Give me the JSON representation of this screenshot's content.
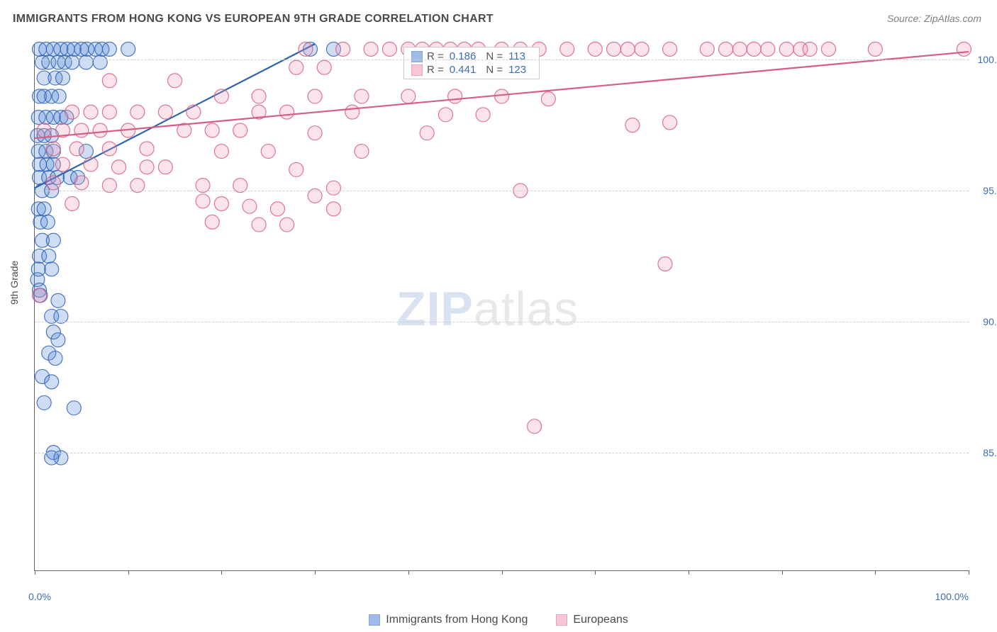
{
  "title": "IMMIGRANTS FROM HONG KONG VS EUROPEAN 9TH GRADE CORRELATION CHART",
  "source_label": "Source: ZipAtlas.com",
  "ylabel": "9th Grade",
  "watermark": {
    "zip": "ZIP",
    "atlas": "atlas"
  },
  "chart": {
    "type": "scatter",
    "background_color": "#ffffff",
    "grid_color": "#d0d0d0",
    "axis_color": "#666666",
    "xlim": [
      0,
      100
    ],
    "ylim": [
      80.5,
      100.6
    ],
    "xtick_positions": [
      0,
      10,
      20,
      30,
      40,
      50,
      60,
      70,
      80,
      90,
      100
    ],
    "xtick_labels_shown": {
      "0": "0.0%",
      "100": "100.0%"
    },
    "ytick_positions": [
      85,
      90,
      95,
      100
    ],
    "ytick_labels": [
      "85.0%",
      "90.0%",
      "95.0%",
      "100.0%"
    ],
    "marker_radius": 10,
    "marker_fill_opacity": 0.28,
    "marker_stroke_opacity": 0.85,
    "marker_stroke_width": 1.2,
    "trendline_width": 2.2,
    "series": [
      {
        "key": "hk",
        "label": "Immigrants from Hong Kong",
        "color": "#4e86d6",
        "stroke": "#2f62b0",
        "R": "0.186",
        "N": "113",
        "trend": {
          "x1": 0,
          "y1": 95.1,
          "x2": 30,
          "y2": 100.6
        },
        "points": [
          [
            0.5,
            100.4
          ],
          [
            1.2,
            100.4
          ],
          [
            2.0,
            100.4
          ],
          [
            2.8,
            100.4
          ],
          [
            3.5,
            100.4
          ],
          [
            4.2,
            100.4
          ],
          [
            5.0,
            100.4
          ],
          [
            5.6,
            100.4
          ],
          [
            6.5,
            100.4
          ],
          [
            7.2,
            100.4
          ],
          [
            8.0,
            100.4
          ],
          [
            10.0,
            100.4
          ],
          [
            29.5,
            100.4
          ],
          [
            32.0,
            100.4
          ],
          [
            0.8,
            99.9
          ],
          [
            1.5,
            99.9
          ],
          [
            2.5,
            99.9
          ],
          [
            3.2,
            99.9
          ],
          [
            4.0,
            99.9
          ],
          [
            5.5,
            99.9
          ],
          [
            7.0,
            99.9
          ],
          [
            1.0,
            99.3
          ],
          [
            2.2,
            99.3
          ],
          [
            3.0,
            99.3
          ],
          [
            0.5,
            98.6
          ],
          [
            1.0,
            98.6
          ],
          [
            1.8,
            98.6
          ],
          [
            2.6,
            98.6
          ],
          [
            0.4,
            97.8
          ],
          [
            1.2,
            97.8
          ],
          [
            2.0,
            97.8
          ],
          [
            2.8,
            97.8
          ],
          [
            3.4,
            97.8
          ],
          [
            0.3,
            97.1
          ],
          [
            1.0,
            97.1
          ],
          [
            1.8,
            97.1
          ],
          [
            0.4,
            96.5
          ],
          [
            1.2,
            96.5
          ],
          [
            2.0,
            96.5
          ],
          [
            5.5,
            96.5
          ],
          [
            0.5,
            96.0
          ],
          [
            1.3,
            96.0
          ],
          [
            2.0,
            96.0
          ],
          [
            0.5,
            95.5
          ],
          [
            1.5,
            95.5
          ],
          [
            2.4,
            95.5
          ],
          [
            3.8,
            95.5
          ],
          [
            4.6,
            95.5
          ],
          [
            0.8,
            95.0
          ],
          [
            1.8,
            95.0
          ],
          [
            0.4,
            94.3
          ],
          [
            1.0,
            94.3
          ],
          [
            0.6,
            93.8
          ],
          [
            1.4,
            93.8
          ],
          [
            0.8,
            93.1
          ],
          [
            2.0,
            93.1
          ],
          [
            0.5,
            92.5
          ],
          [
            1.5,
            92.5
          ],
          [
            0.4,
            92.0
          ],
          [
            1.8,
            92.0
          ],
          [
            0.3,
            91.6
          ],
          [
            0.5,
            91.2
          ],
          [
            0.6,
            91.0
          ],
          [
            2.5,
            90.8
          ],
          [
            1.8,
            90.2
          ],
          [
            2.8,
            90.2
          ],
          [
            2.0,
            89.6
          ],
          [
            2.5,
            89.3
          ],
          [
            1.5,
            88.8
          ],
          [
            2.2,
            88.6
          ],
          [
            0.8,
            87.9
          ],
          [
            1.8,
            87.7
          ],
          [
            1.0,
            86.9
          ],
          [
            4.2,
            86.7
          ],
          [
            2.0,
            85.0
          ],
          [
            2.8,
            84.8
          ],
          [
            1.8,
            84.8
          ]
        ]
      },
      {
        "key": "eu",
        "label": "Europeans",
        "color": "#f29ab3",
        "stroke": "#d65e85",
        "R": "0.441",
        "N": "123",
        "trend": {
          "x1": 0,
          "y1": 97.0,
          "x2": 100,
          "y2": 100.3
        },
        "points": [
          [
            29.0,
            100.4
          ],
          [
            33.0,
            100.4
          ],
          [
            36.0,
            100.4
          ],
          [
            38.0,
            100.4
          ],
          [
            40.0,
            100.4
          ],
          [
            41.5,
            100.4
          ],
          [
            43.0,
            100.4
          ],
          [
            44.5,
            100.4
          ],
          [
            46.0,
            100.4
          ],
          [
            47.5,
            100.4
          ],
          [
            50.0,
            100.4
          ],
          [
            52.0,
            100.4
          ],
          [
            54.0,
            100.4
          ],
          [
            57.0,
            100.4
          ],
          [
            60.0,
            100.4
          ],
          [
            62.0,
            100.4
          ],
          [
            63.5,
            100.4
          ],
          [
            65.0,
            100.4
          ],
          [
            68.0,
            100.4
          ],
          [
            72.0,
            100.4
          ],
          [
            74.0,
            100.4
          ],
          [
            75.5,
            100.4
          ],
          [
            77.0,
            100.4
          ],
          [
            78.5,
            100.4
          ],
          [
            80.5,
            100.4
          ],
          [
            82.0,
            100.4
          ],
          [
            83.0,
            100.4
          ],
          [
            85.0,
            100.4
          ],
          [
            90.0,
            100.4
          ],
          [
            99.5,
            100.4
          ],
          [
            28.0,
            99.7
          ],
          [
            31.0,
            99.7
          ],
          [
            8.0,
            99.2
          ],
          [
            15.0,
            99.2
          ],
          [
            20.0,
            98.6
          ],
          [
            24.0,
            98.6
          ],
          [
            30.0,
            98.6
          ],
          [
            35.0,
            98.6
          ],
          [
            40.0,
            98.6
          ],
          [
            45.0,
            98.6
          ],
          [
            50.0,
            98.6
          ],
          [
            55.0,
            98.5
          ],
          [
            4.0,
            98.0
          ],
          [
            6.0,
            98.0
          ],
          [
            8.0,
            98.0
          ],
          [
            11.0,
            98.0
          ],
          [
            14.0,
            98.0
          ],
          [
            17.0,
            98.0
          ],
          [
            24.0,
            98.0
          ],
          [
            27.0,
            98.0
          ],
          [
            34.0,
            98.0
          ],
          [
            44.0,
            97.9
          ],
          [
            48.0,
            97.9
          ],
          [
            64.0,
            97.5
          ],
          [
            68.0,
            97.6
          ],
          [
            1.0,
            97.3
          ],
          [
            3.0,
            97.3
          ],
          [
            5.0,
            97.3
          ],
          [
            7.0,
            97.3
          ],
          [
            10.0,
            97.3
          ],
          [
            16.0,
            97.3
          ],
          [
            19.0,
            97.3
          ],
          [
            22.0,
            97.3
          ],
          [
            30.0,
            97.2
          ],
          [
            42.0,
            97.2
          ],
          [
            2.0,
            96.6
          ],
          [
            4.5,
            96.6
          ],
          [
            8.0,
            96.6
          ],
          [
            12.0,
            96.6
          ],
          [
            20.0,
            96.5
          ],
          [
            25.0,
            96.5
          ],
          [
            35.0,
            96.5
          ],
          [
            3.0,
            96.0
          ],
          [
            6.0,
            96.0
          ],
          [
            9.0,
            95.9
          ],
          [
            12.0,
            95.9
          ],
          [
            14.0,
            95.9
          ],
          [
            28.0,
            95.8
          ],
          [
            2.0,
            95.3
          ],
          [
            5.0,
            95.3
          ],
          [
            8.0,
            95.2
          ],
          [
            11.0,
            95.2
          ],
          [
            18.0,
            95.2
          ],
          [
            22.0,
            95.2
          ],
          [
            32.0,
            95.1
          ],
          [
            52.0,
            95.0
          ],
          [
            4.0,
            94.5
          ],
          [
            18.0,
            94.6
          ],
          [
            20.0,
            94.5
          ],
          [
            23.0,
            94.4
          ],
          [
            26.0,
            94.3
          ],
          [
            32.0,
            94.3
          ],
          [
            19.0,
            93.8
          ],
          [
            24.0,
            93.7
          ],
          [
            27.0,
            93.7
          ],
          [
            30.0,
            94.8
          ],
          [
            67.5,
            92.2
          ],
          [
            0.5,
            91.0
          ],
          [
            53.5,
            86.0
          ]
        ]
      }
    ]
  },
  "legend_bottom": [
    {
      "key": "hk",
      "label": "Immigrants from Hong Kong"
    },
    {
      "key": "eu",
      "label": "Europeans"
    }
  ]
}
